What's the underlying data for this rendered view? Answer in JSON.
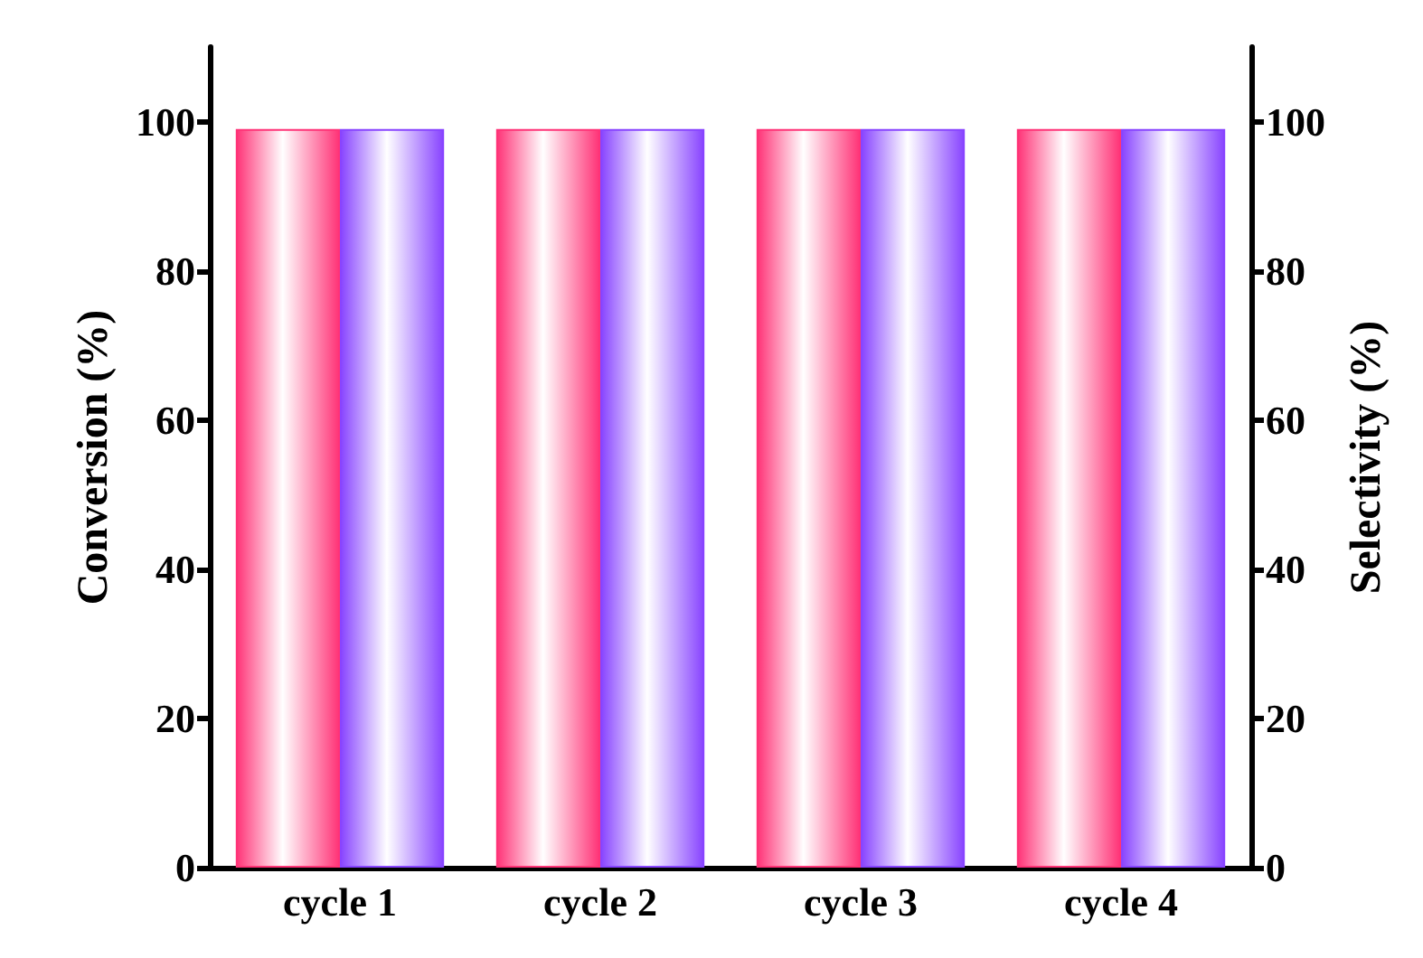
{
  "chart_data": {
    "type": "bar",
    "ylabel": "Conversion (%)",
    "y2label": "Selectivity (%)",
    "categories": [
      "cycle 1",
      "cycle 2",
      "cycle 3",
      "cycle 4"
    ],
    "series": [
      {
        "color": "#ff3377",
        "values": [
          99,
          99,
          99,
          99
        ]
      },
      {
        "color": "#8844ff",
        "values": [
          99,
          99,
          99,
          99
        ]
      }
    ],
    "ylim": [
      0,
      110
    ],
    "yticks": [
      0,
      20,
      40,
      60,
      80,
      100
    ],
    "y2lim": [
      0,
      110
    ],
    "y2ticks": [
      0,
      20,
      40,
      60,
      80,
      100
    ],
    "grid": false
  }
}
